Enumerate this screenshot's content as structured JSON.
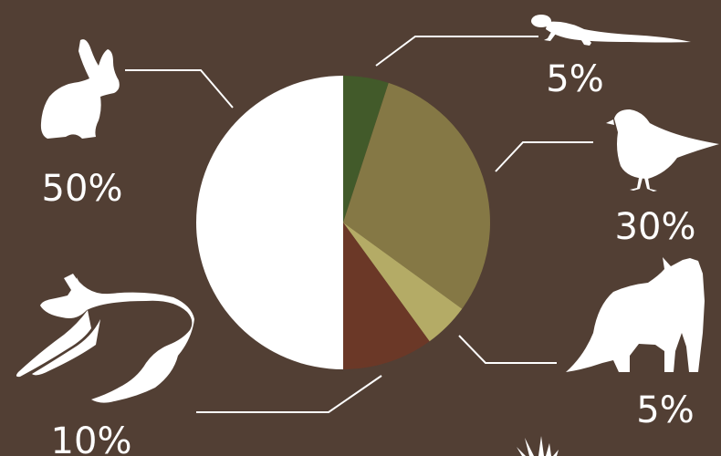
{
  "chart_data": {
    "type": "pie",
    "title": "",
    "slices": [
      {
        "label": "5%",
        "value": 5,
        "color": "#425a2a",
        "icon": "lizard-icon"
      },
      {
        "label": "30%",
        "value": 30,
        "color": "#857845",
        "icon": "bird-icon"
      },
      {
        "label": "5%",
        "value": 5,
        "color": "#b4ab66",
        "icon": "fox-icon"
      },
      {
        "label": "10%",
        "value": 10,
        "color": "#6b3827",
        "icon": "deer-icon"
      },
      {
        "label": "50%",
        "value": 50,
        "color": "#ffffff",
        "icon": "rabbit-icon"
      }
    ],
    "start": "12 o'clock",
    "direction": "clockwise"
  },
  "background_color": "#523f34"
}
